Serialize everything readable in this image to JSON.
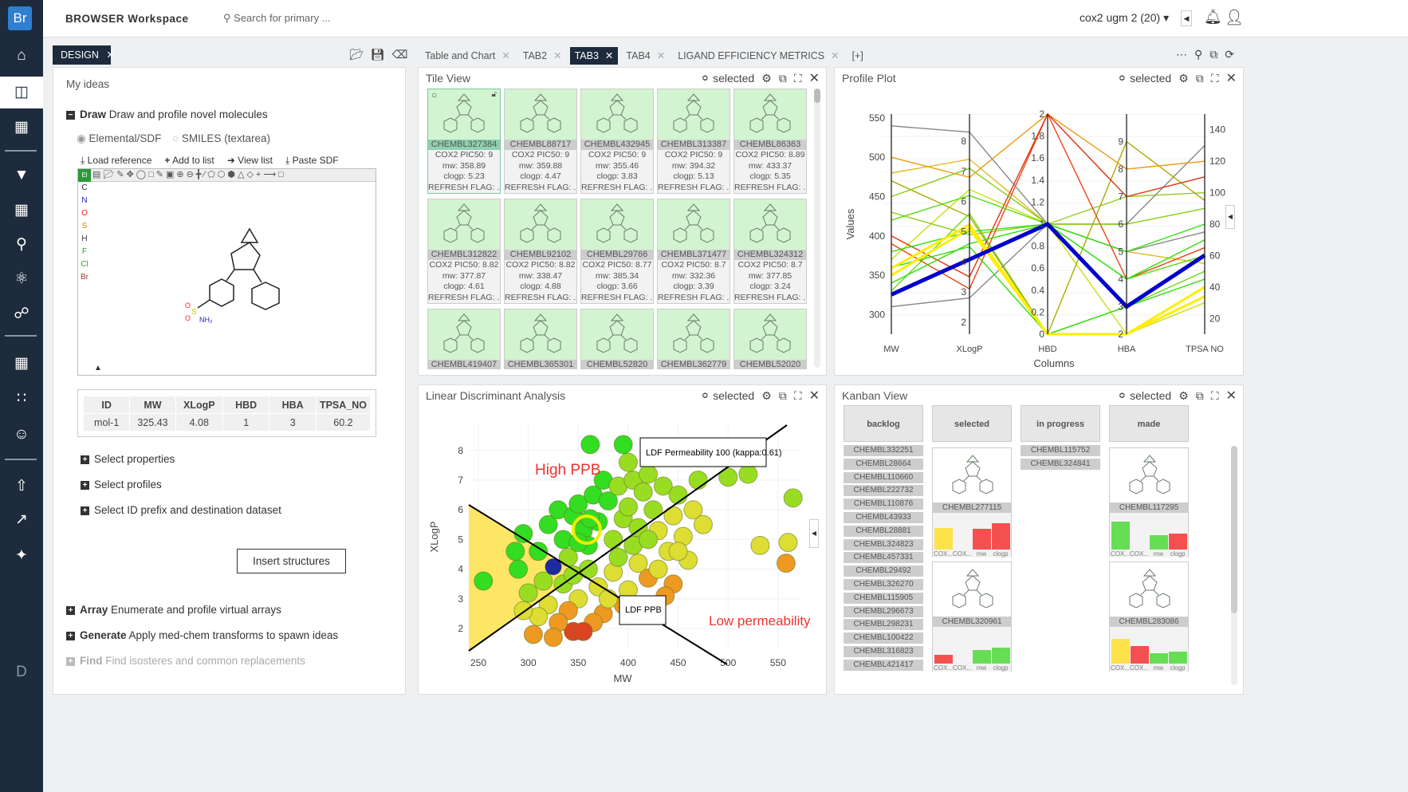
{
  "app": {
    "logo": "Br",
    "title": "BROWSER Workspace",
    "search_placeholder": "Search for primary ...",
    "dataset": "cox2 ugm 2 (20)"
  },
  "sidebar": {
    "icons": [
      "home-icon",
      "layout-icon",
      "add-structure-icon",
      "filter-icon",
      "calculator-icon",
      "search-icon",
      "molecule-settings-icon",
      "network-icon",
      "grid-icon",
      "scatter-icon",
      "users-icon",
      "upload-icon",
      "export-icon",
      "tools-icon",
      "d-logo-icon"
    ]
  },
  "left": {
    "tab": "DESIGN",
    "heading": "My ideas",
    "draw_title": "Draw",
    "draw_desc": "Draw and profile novel molecules",
    "radio1": "Elemental/SDF",
    "radio2": "SMILES (textarea)",
    "actions": [
      "Load reference",
      "Add to list",
      "View list",
      "Paste SDF"
    ],
    "elements": [
      "El",
      "C",
      "N",
      "O",
      "S",
      "H",
      "F",
      "Cl",
      "Br"
    ],
    "table": {
      "headers": [
        "ID",
        "MW",
        "XLogP",
        "HBD",
        "HBA",
        "TPSA_NO"
      ],
      "row": [
        "mol-1",
        "325.43",
        "4.08",
        "1",
        "3",
        "60.2"
      ]
    },
    "sections": [
      "Select properties",
      "Select profiles",
      "Select ID prefix and destination dataset"
    ],
    "insert_button": "Insert structures",
    "more": [
      {
        "title": "Array",
        "desc": "Enumerate and profile virtual arrays"
      },
      {
        "title": "Generate",
        "desc": "Apply med-chem transforms to spawn ideas"
      },
      {
        "title": "Find",
        "desc": "Find isosteres and common replacements"
      }
    ]
  },
  "tabs": [
    {
      "label": "Table and Chart"
    },
    {
      "label": "TAB2"
    },
    {
      "label": "TAB3",
      "active": true
    },
    {
      "label": "TAB4"
    },
    {
      "label": "LIGAND EFFICIENCY METRICS"
    },
    {
      "label": "[+]"
    }
  ],
  "selected_label": "selected",
  "tile_view": {
    "title": "Tile View",
    "tiles": [
      {
        "id": "CHEMBL327384",
        "pic50": "COX2 PIC50: 9",
        "mw": "mw: 358.89",
        "clogp": "clogp: 5.23",
        "flag": "REFRESH FLAG: ..."
      },
      {
        "id": "CHEMBL88717",
        "pic50": "COX2 PIC50: 9",
        "mw": "mw: 359.88",
        "clogp": "clogp: 4.47",
        "flag": "REFRESH FLAG: ..."
      },
      {
        "id": "CHEMBL432945",
        "pic50": "COX2 PIC50: 9",
        "mw": "mw: 355.46",
        "clogp": "clogp: 3.83",
        "flag": "REFRESH FLAG: ..."
      },
      {
        "id": "CHEMBL313387",
        "pic50": "COX2 PIC50: 9",
        "mw": "mw: 394.32",
        "clogp": "clogp: 5.13",
        "flag": "REFRESH FLAG: ..."
      },
      {
        "id": "CHEMBL86363",
        "pic50": "COX2 PIC50: 8.89",
        "mw": "mw: 433.37",
        "clogp": "clogp: 5.35",
        "flag": "REFRESH FLAG: ..."
      },
      {
        "id": "CHEMBL312822",
        "pic50": "COX2 PIC50: 8.82",
        "mw": "mw: 377.87",
        "clogp": "clogp: 4.61",
        "flag": "REFRESH FLAG: ..."
      },
      {
        "id": "CHEMBL92102",
        "pic50": "COX2 PIC50: 8.82",
        "mw": "mw: 338.47",
        "clogp": "clogp: 4.88",
        "flag": "REFRESH FLAG: ..."
      },
      {
        "id": "CHEMBL29766",
        "pic50": "COX2 PIC50: 8.77",
        "mw": "mw: 385.34",
        "clogp": "clogp: 3.66",
        "flag": "REFRESH FLAG: ..."
      },
      {
        "id": "CHEMBL371477",
        "pic50": "COX2 PIC50: 8.7",
        "mw": "mw: 332.36",
        "clogp": "clogp: 3.39",
        "flag": "REFRESH FLAG: ..."
      },
      {
        "id": "CHEMBL324312",
        "pic50": "COX2 PIC50: 8.7",
        "mw": "mw: 377.85",
        "clogp": "clogp: 3.24",
        "flag": "REFRESH FLAG: ..."
      },
      {
        "id": "CHEMBL419407"
      },
      {
        "id": "CHEMBL365301"
      },
      {
        "id": "CHEMBL52820"
      },
      {
        "id": "CHEMBL362779"
      },
      {
        "id": "CHEMBL52020"
      }
    ]
  },
  "chart_data": [
    {
      "type": "line",
      "title": "Profile Plot",
      "xlabel": "Columns",
      "ylabel": "Values",
      "categories": [
        "MW",
        "XLogP",
        "HBD",
        "HBA",
        "TPSA NO"
      ],
      "axes": [
        {
          "name": "MW",
          "range": [
            275,
            555
          ],
          "ticks": [
            300,
            350,
            400,
            450,
            500,
            550
          ]
        },
        {
          "name": "XLogP",
          "range": [
            1.6,
            8.9
          ],
          "ticks": [
            2,
            3,
            4,
            5,
            6,
            7,
            8
          ]
        },
        {
          "name": "HBD",
          "range": [
            0,
            2
          ],
          "ticks": [
            0,
            0.2,
            0.4,
            0.6,
            0.8,
            1,
            1.2,
            1.4,
            1.6,
            1.8,
            2
          ]
        },
        {
          "name": "HBA",
          "range": [
            2,
            10
          ],
          "ticks": [
            2,
            3,
            4,
            5,
            6,
            7,
            8,
            9
          ]
        },
        {
          "name": "TPSA NO",
          "range": [
            10,
            150
          ],
          "ticks": [
            20,
            40,
            60,
            80,
            100,
            120,
            140
          ]
        }
      ],
      "series": [
        {
          "values": [
            325.43,
            4.08,
            1,
            3,
            60.2
          ],
          "color": "#0000cc",
          "highlight": true
        },
        {
          "values": [
            358.89,
            5.23,
            0,
            2,
            34
          ],
          "color": "#ffee00"
        },
        {
          "values": [
            350,
            5.1,
            0,
            2,
            40
          ],
          "color": "#ffee00"
        },
        {
          "values": [
            340,
            4.6,
            1,
            4,
            70
          ],
          "color": "#33dd11"
        },
        {
          "values": [
            380,
            5.0,
            1,
            5,
            80
          ],
          "color": "#33dd11"
        },
        {
          "values": [
            420,
            6.2,
            1,
            4,
            60
          ],
          "color": "#55dd11"
        },
        {
          "values": [
            360,
            4.5,
            0,
            3,
            45
          ],
          "color": "#33dd11"
        },
        {
          "values": [
            450,
            7.1,
            1,
            6,
            90
          ],
          "color": "#88cc11"
        },
        {
          "values": [
            400,
            3.5,
            2,
            7,
            110
          ],
          "color": "#dd3311"
        },
        {
          "values": [
            500,
            6.8,
            2,
            8,
            120
          ],
          "color": "#ee9911"
        },
        {
          "values": [
            310,
            2.8,
            1,
            5,
            75
          ],
          "color": "#888888"
        },
        {
          "values": [
            470,
            5.5,
            0,
            9,
            95
          ],
          "color": "#aaaa00"
        },
        {
          "values": [
            540,
            8.3,
            1,
            6,
            130
          ],
          "color": "#888888"
        },
        {
          "values": [
            390,
            3.1,
            2,
            4,
            65
          ],
          "color": "#ee4411"
        },
        {
          "values": [
            430,
            4.9,
            1,
            7,
            100
          ],
          "color": "#99cc22"
        },
        {
          "values": [
            330,
            5.6,
            0,
            3,
            50
          ],
          "color": "#66dd11"
        },
        {
          "values": [
            370,
            6.4,
            1,
            2,
            30
          ],
          "color": "#ccdd11"
        },
        {
          "values": [
            480,
            7.4,
            1,
            5,
            55
          ],
          "color": "#ddbb22"
        }
      ]
    },
    {
      "type": "scatter",
      "title": "Linear Discriminant Analysis",
      "xlabel": "MW",
      "ylabel": "XLogP",
      "xlim": [
        235,
        575
      ],
      "ylim": [
        1.1,
        8.9
      ],
      "xticks": [
        250,
        300,
        350,
        400,
        450,
        500,
        550
      ],
      "yticks": [
        2,
        3,
        4,
        5,
        6,
        7,
        8
      ],
      "annotations": {
        "high": "High PPB",
        "low": "Low permeability",
        "ppb_line": "LDF PPB",
        "perm_line": "LDF Permeability 100 (kappa:0.61)"
      },
      "color_scale": [
        "#33dd22",
        "#99dd22",
        "#dddd33",
        "#ee9922",
        "#dd4422"
      ],
      "points": [
        [
          290,
          4.0,
          0
        ],
        [
          295,
          5.2,
          0
        ],
        [
          310,
          4.6,
          0
        ],
        [
          320,
          5.5,
          0
        ],
        [
          330,
          6.0,
          0
        ],
        [
          335,
          5.0,
          0
        ],
        [
          340,
          4.4,
          1
        ],
        [
          345,
          5.8,
          0
        ],
        [
          350,
          6.2,
          0
        ],
        [
          355,
          5.3,
          0
        ],
        [
          360,
          4.8,
          0
        ],
        [
          365,
          6.5,
          0
        ],
        [
          370,
          5.6,
          0
        ],
        [
          375,
          7.0,
          0
        ],
        [
          380,
          6.3,
          0
        ],
        [
          385,
          5.0,
          1
        ],
        [
          390,
          6.8,
          1
        ],
        [
          395,
          5.7,
          1
        ],
        [
          400,
          6.1,
          1
        ],
        [
          405,
          7.0,
          1
        ],
        [
          410,
          5.4,
          1
        ],
        [
          415,
          6.6,
          1
        ],
        [
          420,
          7.2,
          1
        ],
        [
          425,
          6.0,
          1
        ],
        [
          430,
          5.3,
          2
        ],
        [
          435,
          6.8,
          1
        ],
        [
          440,
          4.6,
          2
        ],
        [
          445,
          5.8,
          2
        ],
        [
          450,
          6.5,
          1
        ],
        [
          455,
          5.1,
          2
        ],
        [
          460,
          4.3,
          2
        ],
        [
          465,
          6.0,
          2
        ],
        [
          470,
          7.0,
          1
        ],
        [
          475,
          5.5,
          2
        ],
        [
          500,
          7.1,
          1
        ],
        [
          520,
          7.2,
          1
        ],
        [
          565,
          6.4,
          1
        ],
        [
          532,
          4.8,
          2
        ],
        [
          560,
          4.9,
          2
        ],
        [
          558,
          4.2,
          3
        ],
        [
          445,
          3.5,
          3
        ],
        [
          437,
          3.1,
          3
        ],
        [
          420,
          3.7,
          3
        ],
        [
          410,
          4.2,
          2
        ],
        [
          400,
          3.3,
          2
        ],
        [
          395,
          2.8,
          3
        ],
        [
          385,
          3.9,
          2
        ],
        [
          375,
          2.5,
          3
        ],
        [
          370,
          3.4,
          2
        ],
        [
          365,
          2.2,
          3
        ],
        [
          360,
          4.0,
          1
        ],
        [
          350,
          3.0,
          2
        ],
        [
          345,
          1.9,
          4
        ],
        [
          340,
          2.6,
          3
        ],
        [
          335,
          3.5,
          1
        ],
        [
          330,
          2.2,
          3
        ],
        [
          325,
          1.7,
          3
        ],
        [
          320,
          2.8,
          2
        ],
        [
          315,
          3.6,
          1
        ],
        [
          310,
          2.4,
          2
        ],
        [
          305,
          1.8,
          3
        ],
        [
          300,
          3.2,
          1
        ],
        [
          295,
          2.6,
          2
        ],
        [
          355,
          1.9,
          4
        ],
        [
          380,
          3.0,
          2
        ],
        [
          390,
          4.4,
          1
        ],
        [
          350,
          4.9,
          0
        ],
        [
          362,
          5.7,
          0
        ],
        [
          345,
          3.8,
          1
        ],
        [
          405,
          4.8,
          1
        ],
        [
          420,
          5.0,
          1
        ],
        [
          430,
          4.0,
          2
        ],
        [
          450,
          4.6,
          2
        ],
        [
          400,
          7.6,
          1
        ],
        [
          395,
          8.2,
          0
        ],
        [
          362,
          8.2,
          0
        ],
        [
          255,
          3.6,
          0
        ],
        [
          287,
          4.6,
          0
        ],
        [
          325,
          4.08,
          "mol-1"
        ]
      ],
      "highlight": [
        358.5,
        5.33
      ]
    }
  ],
  "kanban": {
    "title": "Kanban View",
    "columns": [
      "backlog",
      "selected",
      "in progress",
      "made"
    ],
    "backlog": [
      "CHEMBL332251",
      "CHEMBL28664",
      "CHEMBL110660",
      "CHEMBL222732",
      "CHEMBL110876",
      "CHEMBL43933",
      "CHEMBL28881",
      "CHEMBL324823",
      "CHEMBL457331",
      "CHEMBL29492",
      "CHEMBL326270",
      "CHEMBL115905",
      "CHEMBL296673",
      "CHEMBL298231",
      "CHEMBL100422",
      "CHEMBL316823",
      "CHEMBL421417"
    ],
    "in_progress": [
      "CHEMBL115752",
      "CHEMBL324841"
    ],
    "bar_labels": [
      "COX...",
      "COX...",
      "mw",
      "clogp"
    ],
    "selected": [
      {
        "id": "CHEMBL277115",
        "bars": [
          {
            "v": 0.62,
            "c": "#fde24a"
          },
          {
            "v": 0,
            "c": "#fde24a"
          },
          {
            "v": 0.6,
            "c": "#f55050"
          },
          {
            "v": 0.75,
            "c": "#f55050"
          }
        ]
      },
      {
        "id": "CHEMBL320961",
        "bars": [
          {
            "v": 0.25,
            "c": "#f55050"
          },
          {
            "v": 0,
            "c": "#f55050"
          },
          {
            "v": 0.38,
            "c": "#66dd55"
          },
          {
            "v": 0.45,
            "c": "#66dd55"
          }
        ]
      }
    ],
    "made": [
      {
        "id": "CHEMBL117295",
        "bars": [
          {
            "v": 0.8,
            "c": "#66dd55"
          },
          {
            "v": 0,
            "c": "#66dd55"
          },
          {
            "v": 0.42,
            "c": "#66dd55"
          },
          {
            "v": 0.45,
            "c": "#f55050"
          }
        ]
      },
      {
        "id": "CHEMBL283086",
        "bars": [
          {
            "v": 0.7,
            "c": "#fde24a"
          },
          {
            "v": 0.5,
            "c": "#f55050"
          },
          {
            "v": 0.3,
            "c": "#66dd55"
          },
          {
            "v": 0.33,
            "c": "#66dd55"
          }
        ]
      }
    ]
  }
}
